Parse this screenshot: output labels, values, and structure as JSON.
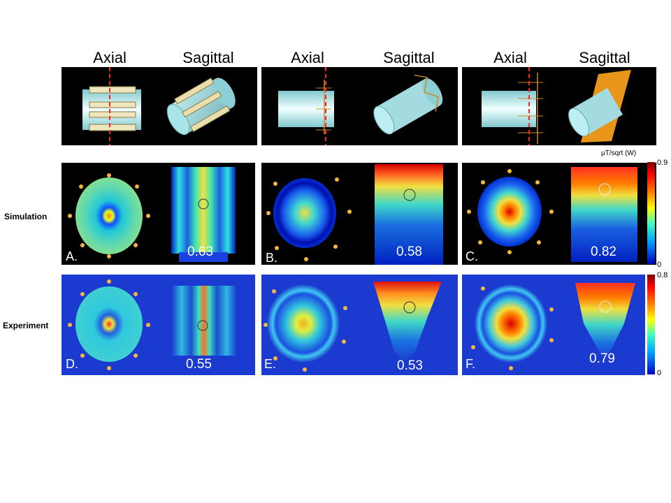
{
  "headers": [
    "Axial",
    "Sagittal",
    "Axial",
    "Sagittal",
    "Axial",
    "Sagittal"
  ],
  "row_labels": {
    "simulation": "Simulation",
    "experiment": "Experiment"
  },
  "panel_labels": [
    "A.",
    "B.",
    "C.",
    "D.",
    "E.",
    "F."
  ],
  "values": [
    "0.63",
    "0.58",
    "0.82",
    "0.55",
    "0.53",
    "0.79"
  ],
  "colorbar_sim": {
    "title": "µT/sqrt (W)",
    "max": "0.9",
    "min": "0"
  },
  "colorbar_exp": {
    "max": "0.8",
    "min": "0"
  },
  "colors": {
    "coil": "#f5b640",
    "dashed_line": "#ff2020",
    "phantom": "#a8e4e8",
    "plate": "#e8961a"
  }
}
